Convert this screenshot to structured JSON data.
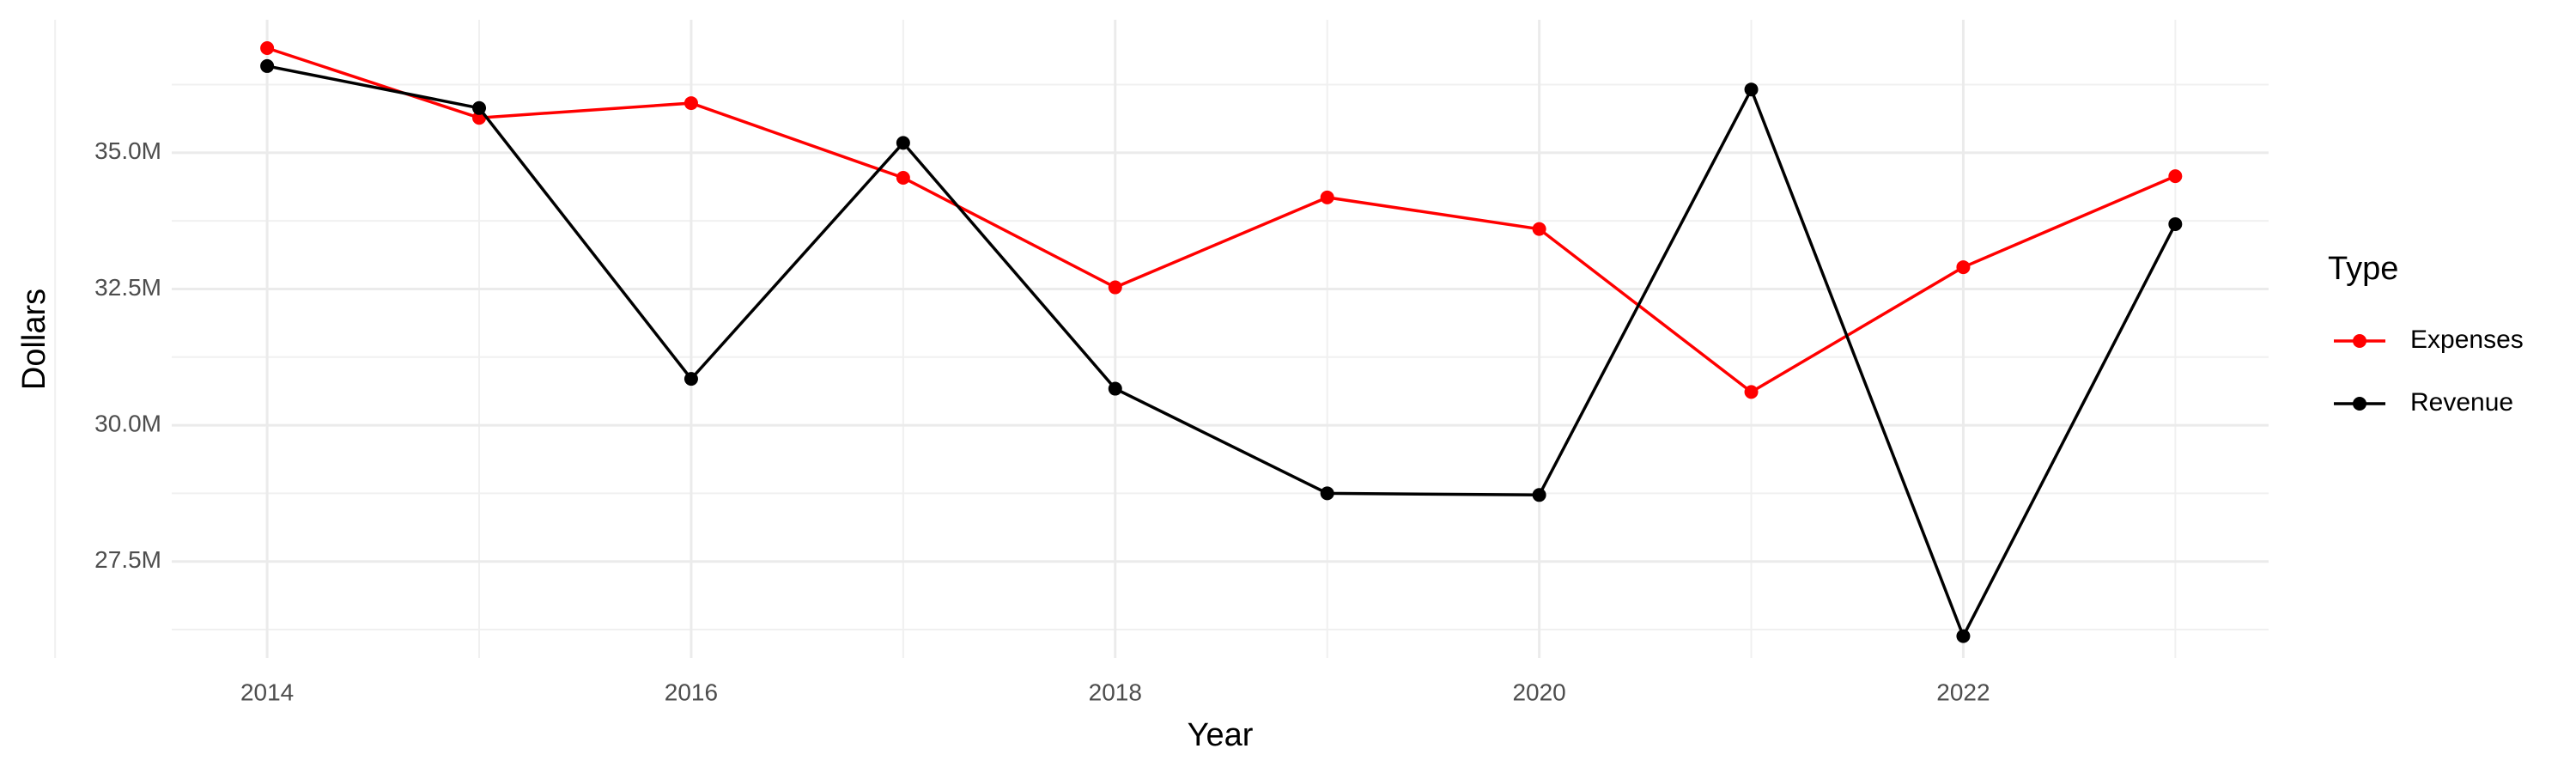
{
  "chart_data": {
    "type": "line",
    "x_label": "Year",
    "y_label": "Dollars",
    "legend_title": "Type",
    "legend_position": "right",
    "grid": true,
    "x": [
      2014,
      2015,
      2016,
      2017,
      2018,
      2019,
      2020,
      2021,
      2022,
      2023
    ],
    "xlim": [
      2013.55,
      2023.44
    ],
    "xticks": [
      2014,
      2016,
      2018,
      2020,
      2022
    ],
    "ylim": [
      25730000,
      37440000
    ],
    "yticks": [
      {
        "value": 27500000,
        "label": "27.5M"
      },
      {
        "value": 30000000,
        "label": "30.0M"
      },
      {
        "value": 32500000,
        "label": "32.5M"
      },
      {
        "value": 35000000,
        "label": "35.0M"
      }
    ],
    "series": [
      {
        "name": "Expenses",
        "color": "#ff0000",
        "values": [
          36920000,
          35640000,
          35910000,
          34540000,
          32530000,
          34180000,
          33600000,
          30610000,
          32900000,
          34570000
        ]
      },
      {
        "name": "Revenue",
        "color": "#000000",
        "values": [
          36590000,
          35820000,
          30850000,
          35180000,
          30670000,
          28750000,
          28720000,
          36160000,
          26130000,
          33690000
        ]
      }
    ]
  }
}
